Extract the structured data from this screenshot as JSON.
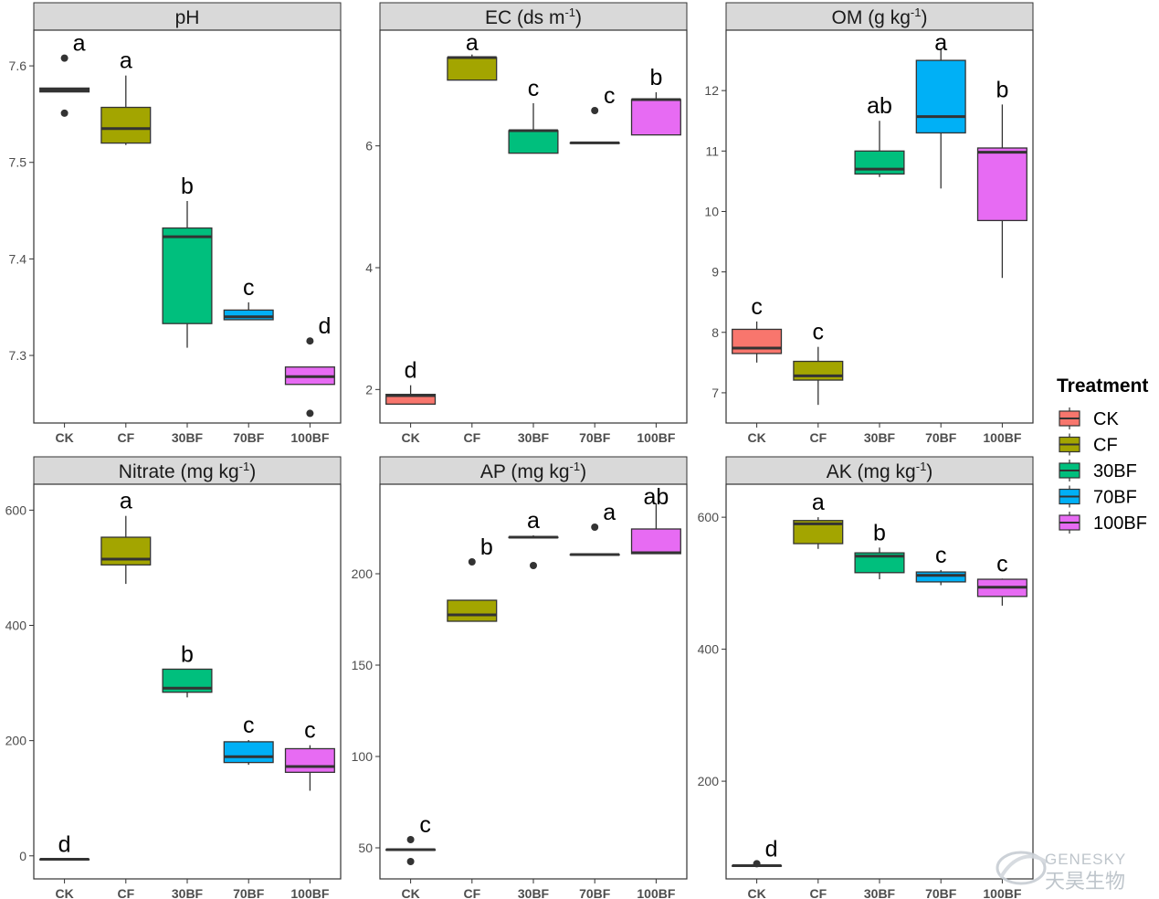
{
  "legend": {
    "title": "Treatment",
    "items": [
      {
        "label": "CK",
        "color": "#F8766D"
      },
      {
        "label": "CF",
        "color": "#A3A500"
      },
      {
        "label": "30BF",
        "color": "#00BF7D"
      },
      {
        "label": "70BF",
        "color": "#00B0F6"
      },
      {
        "label": "100BF",
        "color": "#E76BF3"
      }
    ]
  },
  "watermark": {
    "text_en": "GENESKY",
    "text_cn": "天昊生物"
  },
  "chart_data": [
    {
      "type": "box",
      "title": "pH",
      "categories": [
        "CK",
        "CF",
        "30BF",
        "70BF",
        "100BF"
      ],
      "ylim": [
        7.23,
        7.637
      ],
      "yticks": [
        7.3,
        7.4,
        7.5,
        7.6
      ],
      "ytick_labels": [
        "7.3",
        "7.4",
        "7.5",
        "7.6"
      ],
      "boxes": [
        {
          "category": "CK",
          "q1": 7.573,
          "median": 7.575,
          "q3": 7.577,
          "whisker_low": 7.573,
          "whisker_high": 7.577,
          "outliers": [
            7.608,
            7.551
          ],
          "label": "a"
        },
        {
          "category": "CF",
          "q1": 7.52,
          "median": 7.535,
          "q3": 7.557,
          "whisker_low": 7.518,
          "whisker_high": 7.59,
          "outliers": [],
          "label": "a"
        },
        {
          "category": "30BF",
          "q1": 7.333,
          "median": 7.423,
          "q3": 7.432,
          "whisker_low": 7.308,
          "whisker_high": 7.46,
          "outliers": [],
          "label": "b"
        },
        {
          "category": "70BF",
          "q1": 7.337,
          "median": 7.34,
          "q3": 7.347,
          "whisker_low": 7.337,
          "whisker_high": 7.355,
          "outliers": [],
          "label": "c"
        },
        {
          "category": "100BF",
          "q1": 7.27,
          "median": 7.278,
          "q3": 7.288,
          "whisker_low": 7.27,
          "whisker_high": 7.288,
          "outliers": [
            7.315,
            7.24
          ],
          "label": "d"
        }
      ]
    },
    {
      "type": "box",
      "title": "EC (ds m",
      "title_sup": "-1",
      "title_end": ")",
      "categories": [
        "CK",
        "CF",
        "30BF",
        "70BF",
        "100BF"
      ],
      "ylim": [
        1.45,
        7.9
      ],
      "yticks": [
        2,
        4,
        6
      ],
      "ytick_labels": [
        "2",
        "4",
        "6"
      ],
      "boxes": [
        {
          "category": "CK",
          "q1": 1.76,
          "median": 1.9,
          "q3": 1.92,
          "whisker_low": 1.76,
          "whisker_high": 2.07,
          "outliers": [],
          "label": "d"
        },
        {
          "category": "CF",
          "q1": 7.08,
          "median": 7.45,
          "q3": 7.45,
          "whisker_low": 7.08,
          "whisker_high": 7.5,
          "outliers": [],
          "label": "a"
        },
        {
          "category": "30BF",
          "q1": 5.88,
          "median": 6.25,
          "q3": 6.25,
          "whisker_low": 5.88,
          "whisker_high": 6.7,
          "outliers": [],
          "label": "c"
        },
        {
          "category": "70BF",
          "q1": 6.05,
          "median": 6.05,
          "q3": 6.05,
          "whisker_low": 6.05,
          "whisker_high": 6.05,
          "outliers": [
            6.58
          ],
          "label": "c"
        },
        {
          "category": "100BF",
          "q1": 6.18,
          "median": 6.76,
          "q3": 6.76,
          "whisker_low": 6.18,
          "whisker_high": 6.88,
          "outliers": [],
          "label": "b"
        }
      ]
    },
    {
      "type": "box",
      "title": "OM (g kg",
      "title_sup": "-1",
      "title_end": ")",
      "categories": [
        "CK",
        "CF",
        "30BF",
        "70BF",
        "100BF"
      ],
      "ylim": [
        6.5,
        13.0
      ],
      "yticks": [
        7,
        8,
        9,
        10,
        11,
        12
      ],
      "ytick_labels": [
        "7",
        "8",
        "9",
        "10",
        "11",
        "12"
      ],
      "boxes": [
        {
          "category": "CK",
          "q1": 7.65,
          "median": 7.74,
          "q3": 8.05,
          "whisker_low": 7.5,
          "whisker_high": 8.18,
          "outliers": [],
          "label": "c"
        },
        {
          "category": "CF",
          "q1": 7.21,
          "median": 7.28,
          "q3": 7.52,
          "whisker_low": 6.8,
          "whisker_high": 7.76,
          "outliers": [],
          "label": "c"
        },
        {
          "category": "30BF",
          "q1": 10.62,
          "median": 10.7,
          "q3": 11.0,
          "whisker_low": 10.57,
          "whisker_high": 11.5,
          "outliers": [],
          "label": "ab"
        },
        {
          "category": "70BF",
          "q1": 11.3,
          "median": 11.57,
          "q3": 12.5,
          "whisker_low": 10.38,
          "whisker_high": 12.7,
          "outliers": [],
          "label": "a"
        },
        {
          "category": "100BF",
          "q1": 9.85,
          "median": 10.98,
          "q3": 11.05,
          "whisker_low": 8.9,
          "whisker_high": 11.77,
          "outliers": [],
          "label": "b"
        }
      ]
    },
    {
      "type": "box",
      "title": "Nitrate (mg kg",
      "title_sup": "-1",
      "title_end": ")",
      "categories": [
        "CK",
        "CF",
        "30BF",
        "70BF",
        "100BF"
      ],
      "ylim": [
        -40,
        645
      ],
      "yticks": [
        0,
        200,
        400,
        600
      ],
      "ytick_labels": [
        "0",
        "200",
        "400",
        "600"
      ],
      "boxes": [
        {
          "category": "CK",
          "q1": -6,
          "median": -6,
          "q3": -6,
          "whisker_low": -6,
          "whisker_high": -6,
          "outliers": [],
          "label": "d"
        },
        {
          "category": "CF",
          "q1": 505,
          "median": 515,
          "q3": 553,
          "whisker_low": 472,
          "whisker_high": 590,
          "outliers": [],
          "label": "a"
        },
        {
          "category": "30BF",
          "q1": 284,
          "median": 291,
          "q3": 324,
          "whisker_low": 275,
          "whisker_high": 324,
          "outliers": [],
          "label": "b"
        },
        {
          "category": "70BF",
          "q1": 162,
          "median": 172,
          "q3": 198,
          "whisker_low": 158,
          "whisker_high": 201,
          "outliers": [],
          "label": "c"
        },
        {
          "category": "100BF",
          "q1": 145,
          "median": 155,
          "q3": 186,
          "whisker_low": 113,
          "whisker_high": 192,
          "outliers": [],
          "label": "c"
        }
      ]
    },
    {
      "type": "box",
      "title": "AP (mg kg",
      "title_sup": "-1",
      "title_end": ")",
      "categories": [
        "CK",
        "CF",
        "30BF",
        "70BF",
        "100BF"
      ],
      "ylim": [
        33,
        249
      ],
      "yticks": [
        50,
        100,
        150,
        200
      ],
      "ytick_labels": [
        "50",
        "100",
        "150",
        "200"
      ],
      "boxes": [
        {
          "category": "CK",
          "q1": 49,
          "median": 49,
          "q3": 49,
          "whisker_low": 49,
          "whisker_high": 49,
          "outliers": [
            54.5,
            42.5
          ],
          "label": "c"
        },
        {
          "category": "CF",
          "q1": 174,
          "median": 177.5,
          "q3": 185.5,
          "whisker_low": 174,
          "whisker_high": 185.5,
          "outliers": [
            206.5
          ],
          "label": "b"
        },
        {
          "category": "30BF",
          "q1": 220,
          "median": 220,
          "q3": 220,
          "whisker_low": 220,
          "whisker_high": 221,
          "outliers": [
            204.5
          ],
          "label": "a"
        },
        {
          "category": "70BF",
          "q1": 210.5,
          "median": 210.5,
          "q3": 210.5,
          "whisker_low": 210.5,
          "whisker_high": 210.5,
          "outliers": [
            225.5
          ],
          "label": "a"
        },
        {
          "category": "100BF",
          "q1": 211,
          "median": 211.5,
          "q3": 224.5,
          "whisker_low": 211,
          "whisker_high": 238.5,
          "outliers": [],
          "label": "ab"
        }
      ]
    },
    {
      "type": "box",
      "title": "AK (mg kg",
      "title_sup": "-1",
      "title_end": ")",
      "categories": [
        "CK",
        "CF",
        "30BF",
        "70BF",
        "100BF"
      ],
      "ylim": [
        52,
        650
      ],
      "yticks": [
        200,
        400,
        600
      ],
      "ytick_labels": [
        "200",
        "400",
        "600"
      ],
      "boxes": [
        {
          "category": "CK",
          "q1": 72,
          "median": 72,
          "q3": 72,
          "whisker_low": 72,
          "whisker_high": 72,
          "outliers": [
            75
          ],
          "label": "d"
        },
        {
          "category": "CF",
          "q1": 560,
          "median": 590,
          "q3": 595,
          "whisker_low": 552,
          "whisker_high": 600,
          "outliers": [],
          "label": "a"
        },
        {
          "category": "30BF",
          "q1": 516,
          "median": 541,
          "q3": 546,
          "whisker_low": 506,
          "whisker_high": 554,
          "outliers": [],
          "label": "b"
        },
        {
          "category": "70BF",
          "q1": 502,
          "median": 512,
          "q3": 517,
          "whisker_low": 497,
          "whisker_high": 520,
          "outliers": [],
          "label": "c"
        },
        {
          "category": "100BF",
          "q1": 480,
          "median": 494,
          "q3": 506,
          "whisker_low": 466,
          "whisker_high": 507,
          "outliers": [],
          "label": "c"
        }
      ]
    }
  ]
}
